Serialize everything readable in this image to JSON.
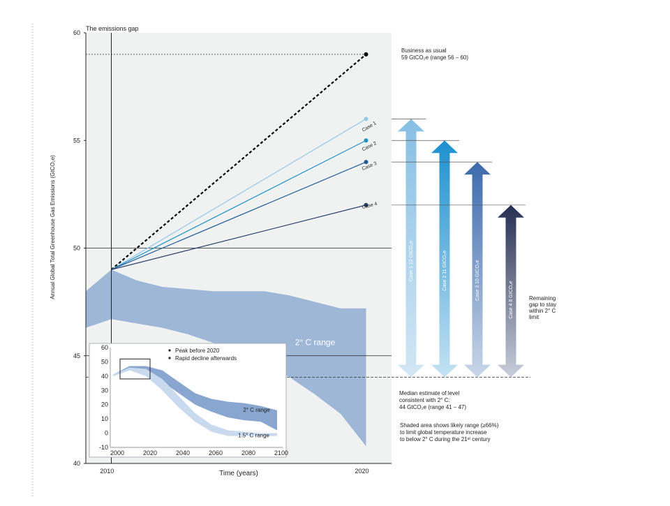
{
  "chart_data": [
    {
      "type": "line",
      "title": "The emissions gap",
      "xlabel": "Time (years)",
      "ylabel": "Annual Global Total Greenhouse Gas Emissions (GtCO₂e)",
      "ylim": [
        40,
        60
      ],
      "xlim": [
        2009,
        2021
      ],
      "y_ticks": [
        40,
        45,
        50,
        55,
        60
      ],
      "x_ticks": [
        2010,
        2020
      ],
      "series": [
        {
          "name": "Business as usual",
          "x": [
            2010,
            2020
          ],
          "y": [
            49,
            59
          ],
          "color": "#000000",
          "style": "dashed"
        },
        {
          "name": "Case 1",
          "x": [
            2010,
            2020
          ],
          "y": [
            49,
            56
          ],
          "color": "#8fc6ea"
        },
        {
          "name": "Case 2",
          "x": [
            2010,
            2020
          ],
          "y": [
            49,
            55
          ],
          "color": "#1e90c8"
        },
        {
          "name": "Case 3",
          "x": [
            2010,
            2020
          ],
          "y": [
            49,
            54
          ],
          "color": "#1f5c99"
        },
        {
          "name": "Case 4",
          "x": [
            2010,
            2020
          ],
          "y": [
            49,
            52
          ],
          "color": "#253a66"
        }
      ],
      "range_band": {
        "x": [
          2009,
          2010,
          2011,
          2012,
          2013,
          2014,
          2015,
          2016,
          2017,
          2018,
          2019,
          2020
        ],
        "upper": [
          48.0,
          49.0,
          48.5,
          48.2,
          48.1,
          48.0,
          48.0,
          48.0,
          47.8,
          47.5,
          47.2,
          47.2
        ],
        "lower": [
          46.3,
          46.7,
          46.5,
          46.3,
          46.0,
          45.6,
          45.2,
          44.7,
          44.0,
          43.2,
          42.3,
          40.8
        ],
        "color": "#9ab3d5",
        "label": "2° C range"
      },
      "reference_lines": [
        {
          "y": 59,
          "style": "dotted"
        },
        {
          "y": 44,
          "style": "dashed"
        }
      ],
      "gaps": [
        {
          "label": "Case 1  12 GtCO₂e",
          "from": 44,
          "to": 56,
          "colors": [
            "#d4e7f4",
            "#86bfe4"
          ]
        },
        {
          "label": "Case 2  11 GtCO₂e",
          "from": 44,
          "to": 55,
          "colors": [
            "#c4e2f3",
            "#1e90cf"
          ]
        },
        {
          "label": "Case 3  10 GtCO₂e",
          "from": 44,
          "to": 54,
          "colors": [
            "#c9d6e8",
            "#3d6aad"
          ]
        },
        {
          "label": "Case 4  8 GtCO₂e",
          "from": 44,
          "to": 52,
          "colors": [
            "#c9cedb",
            "#262f52"
          ]
        }
      ],
      "annotations": {
        "bau": [
          "Business as usual",
          "59 GtCO₂e (range 56 – 60)"
        ],
        "median": [
          "Median estimate of level",
          "consistent with 2° C:",
          "44 GtCO₂e (range 41 – 47)"
        ],
        "shaded": [
          "Shaded area shows likely range (≥66%)",
          "to limit global temperature increase",
          "to below 2° C during the 21ˢᵗ century"
        ],
        "remaining": [
          "Remaining",
          "gap to stay",
          "within 2° C",
          "limit"
        ],
        "case_labels": [
          "Case 1",
          "Case 2",
          "Case 3",
          "Case 4"
        ]
      }
    },
    {
      "type": "area",
      "xlim": [
        2000,
        2100
      ],
      "ylim": [
        -10,
        60
      ],
      "x_ticks": [
        2000,
        2020,
        2040,
        2060,
        2080,
        2100
      ],
      "y_ticks": [
        60,
        50,
        40,
        30,
        20,
        10,
        0,
        -10
      ],
      "legend": [
        "Peak before 2020",
        "Rapid decline afterwards"
      ],
      "series": [
        {
          "name": "2° C range",
          "x": [
            2000,
            2010,
            2020,
            2030,
            2040,
            2050,
            2060,
            2070,
            2080,
            2090,
            2100
          ],
          "upper": [
            41,
            47,
            47,
            44,
            36,
            28,
            24,
            22,
            21,
            19,
            16
          ],
          "lower": [
            40,
            44,
            45,
            36,
            28,
            20,
            15,
            11,
            9,
            8,
            2
          ],
          "color": "#88a6cf"
        },
        {
          "name": "1.5° C range",
          "x": [
            2000,
            2010,
            2020,
            2030,
            2040,
            2050,
            2060,
            2070,
            2080,
            2090,
            2100
          ],
          "upper": [
            41,
            46,
            45,
            38,
            26,
            14,
            6,
            2,
            1,
            0,
            0
          ],
          "lower": [
            40,
            44,
            40,
            30,
            18,
            8,
            1,
            -2,
            -2,
            -2,
            -2
          ],
          "color": "#c9d9ee"
        }
      ]
    }
  ]
}
